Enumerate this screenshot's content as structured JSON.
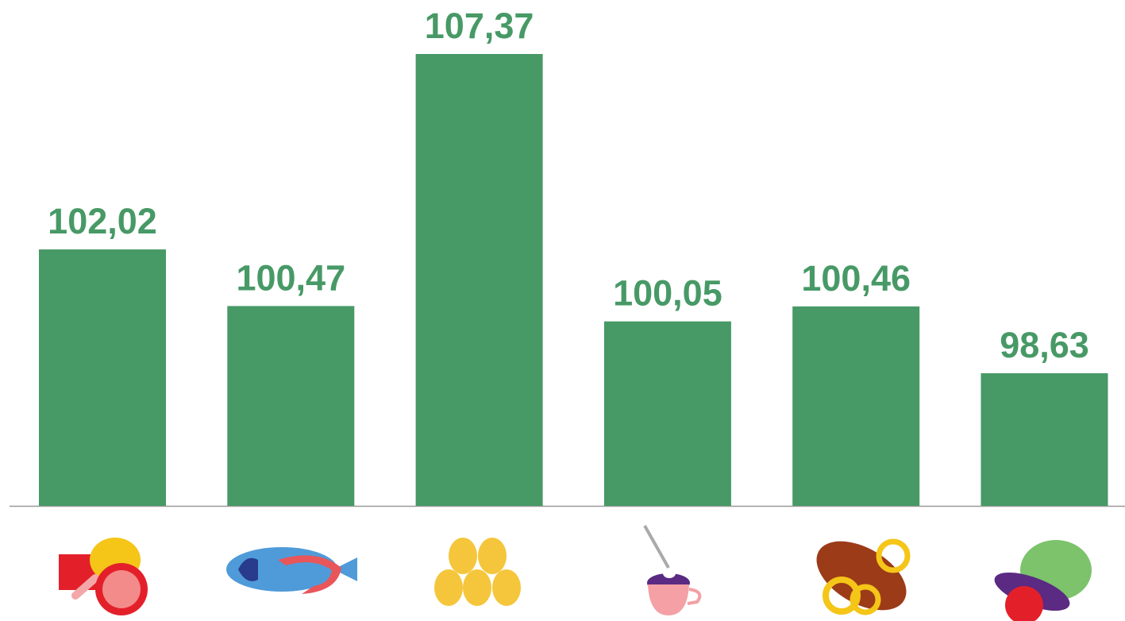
{
  "chart_data": {
    "type": "bar",
    "categories": [
      null,
      null,
      null,
      null,
      null,
      null
    ],
    "values": [
      102.02,
      100.47,
      107.37,
      100.05,
      100.46,
      98.63
    ],
    "value_labels": [
      "102,02",
      "100,47",
      "107,37",
      "100,05",
      "100,46",
      "98,63"
    ],
    "color": "#479966",
    "ylim": [
      95,
      109
    ]
  }
}
